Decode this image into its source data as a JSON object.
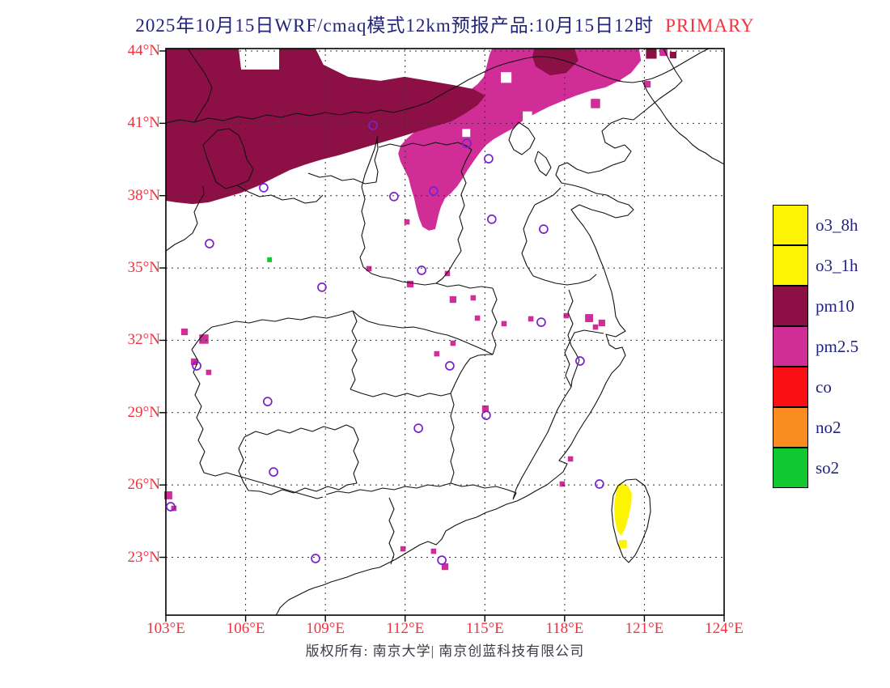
{
  "title": {
    "main": "2025年10月15日WRF/cmaq模式12km预报产品:10月15日12时",
    "highlight": "PRIMARY"
  },
  "footer": {
    "text": "版权所有: 南京大学| 南京创蓝科技有限公司"
  },
  "colors": {
    "title": "#23237e",
    "highlight": "#f2333d",
    "axis_label": "#ef3340",
    "grid": "#333333",
    "boundary": "#111111",
    "frame": "#000000",
    "station": "#7b22cc"
  },
  "axes": {
    "lat_labels": [
      {
        "value": 44,
        "label": "44°N"
      },
      {
        "value": 41,
        "label": "41°N"
      },
      {
        "value": 38,
        "label": "38°N"
      },
      {
        "value": 35,
        "label": "35°N"
      },
      {
        "value": 32,
        "label": "32°N"
      },
      {
        "value": 29,
        "label": "29°N"
      },
      {
        "value": 26,
        "label": "26°N"
      },
      {
        "value": 23,
        "label": "23°N"
      }
    ],
    "lon_labels": [
      {
        "value": 103,
        "label": "103°E"
      },
      {
        "value": 106,
        "label": "106°E"
      },
      {
        "value": 109,
        "label": "109°E"
      },
      {
        "value": 112,
        "label": "112°E"
      },
      {
        "value": 115,
        "label": "115°E"
      },
      {
        "value": 118,
        "label": "118°E"
      },
      {
        "value": 121,
        "label": "121°E"
      },
      {
        "value": 124,
        "label": "124°E"
      }
    ]
  },
  "legend": {
    "items": [
      {
        "label": "o3_8h",
        "color": "#fdf403"
      },
      {
        "label": "o3_1h",
        "color": "#fdf403"
      },
      {
        "label": "pm10",
        "color": "#8c1046"
      },
      {
        "label": "pm2.5",
        "color": "#d02d96"
      },
      {
        "label": "co",
        "color": "#fa0f14"
      },
      {
        "label": "no2",
        "color": "#fb8d20"
      },
      {
        "label": "so2",
        "color": "#12c832"
      }
    ]
  },
  "chart_data": {
    "type": "map",
    "projection": {
      "lon_min": 103,
      "lon_max": 124,
      "lat_min": 20.6,
      "lat_max": 44.1
    },
    "grid_step_deg": 3,
    "lon_ticks": [
      103,
      106,
      109,
      112,
      115,
      118,
      121,
      124
    ],
    "lat_ticks": [
      44,
      41,
      38,
      35,
      32,
      29,
      26,
      23
    ],
    "regions": [
      {
        "pollutant": "pm2.5",
        "color": "#d02d96",
        "polygon": [
          [
            115.27,
            44.1
          ],
          [
            120.8,
            44.1
          ],
          [
            120.87,
            43.6
          ],
          [
            120.5,
            43.09
          ],
          [
            120.04,
            42.76
          ],
          [
            119.53,
            42.49
          ],
          [
            118.98,
            42.35
          ],
          [
            118.43,
            42.15
          ],
          [
            117.91,
            41.92
          ],
          [
            117.39,
            41.68
          ],
          [
            116.91,
            41.41
          ],
          [
            116.48,
            41.15
          ],
          [
            116.09,
            40.81
          ],
          [
            115.69,
            40.57
          ],
          [
            115.33,
            40.34
          ],
          [
            115.02,
            40.07
          ],
          [
            114.78,
            39.74
          ],
          [
            114.56,
            39.4
          ],
          [
            114.35,
            39.06
          ],
          [
            114.17,
            38.73
          ],
          [
            113.96,
            38.39
          ],
          [
            113.74,
            38.12
          ],
          [
            113.5,
            37.89
          ],
          [
            113.35,
            37.55
          ],
          [
            113.26,
            37.22
          ],
          [
            113.19,
            36.88
          ],
          [
            113.13,
            36.61
          ],
          [
            112.89,
            36.55
          ],
          [
            112.65,
            36.71
          ],
          [
            112.53,
            37.05
          ],
          [
            112.43,
            37.45
          ],
          [
            112.34,
            37.89
          ],
          [
            112.22,
            38.33
          ],
          [
            112.13,
            38.73
          ],
          [
            111.98,
            39.06
          ],
          [
            111.83,
            39.4
          ],
          [
            111.74,
            39.74
          ],
          [
            111.83,
            40.07
          ],
          [
            112.04,
            40.34
          ],
          [
            112.28,
            40.57
          ],
          [
            112.59,
            40.81
          ],
          [
            112.89,
            41.08
          ],
          [
            113.19,
            41.35
          ],
          [
            113.5,
            41.58
          ],
          [
            113.8,
            41.82
          ],
          [
            114.11,
            42.08
          ],
          [
            114.41,
            42.35
          ],
          [
            114.72,
            42.62
          ],
          [
            114.96,
            42.93
          ],
          [
            115.08,
            43.43
          ],
          [
            115.17,
            43.83
          ]
        ]
      },
      {
        "pollutant": "pm10",
        "color": "#8c1046",
        "polygon": [
          [
            103.0,
            44.1
          ],
          [
            105.74,
            44.1
          ],
          [
            105.83,
            43.23
          ],
          [
            107.26,
            43.23
          ],
          [
            107.26,
            44.1
          ],
          [
            108.63,
            44.1
          ],
          [
            108.93,
            43.43
          ],
          [
            109.85,
            42.93
          ],
          [
            111.07,
            42.76
          ],
          [
            111.98,
            42.93
          ],
          [
            112.89,
            42.76
          ],
          [
            113.8,
            42.59
          ],
          [
            114.56,
            42.42
          ],
          [
            115.02,
            42.15
          ],
          [
            114.72,
            41.75
          ],
          [
            114.26,
            41.41
          ],
          [
            113.74,
            41.08
          ],
          [
            113.13,
            40.88
          ],
          [
            112.53,
            40.68
          ],
          [
            111.92,
            40.47
          ],
          [
            111.31,
            40.27
          ],
          [
            110.7,
            40.07
          ],
          [
            110.09,
            39.87
          ],
          [
            109.48,
            39.67
          ],
          [
            108.87,
            39.5
          ],
          [
            108.27,
            39.3
          ],
          [
            107.66,
            39.06
          ],
          [
            107.05,
            38.73
          ],
          [
            106.44,
            38.39
          ],
          [
            105.83,
            38.12
          ],
          [
            105.22,
            37.92
          ],
          [
            104.61,
            37.72
          ],
          [
            104.0,
            37.65
          ],
          [
            103.4,
            37.72
          ],
          [
            103.0,
            37.79
          ]
        ]
      },
      {
        "pollutant": "pm10",
        "color": "#8c1046",
        "polygon": [
          [
            116.85,
            44.1
          ],
          [
            118.37,
            44.1
          ],
          [
            118.52,
            43.6
          ],
          [
            118.06,
            43.09
          ],
          [
            117.45,
            42.99
          ],
          [
            116.91,
            43.36
          ],
          [
            116.79,
            43.76
          ]
        ]
      },
      {
        "pollutant": "o3",
        "color": "#fdf403",
        "polygon": [
          [
            120.07,
            26.07
          ],
          [
            120.38,
            25.97
          ],
          [
            120.53,
            25.64
          ],
          [
            120.5,
            25.17
          ],
          [
            120.41,
            24.7
          ],
          [
            120.29,
            24.23
          ],
          [
            120.13,
            23.89
          ],
          [
            119.98,
            24.09
          ],
          [
            119.89,
            24.56
          ],
          [
            119.86,
            25.1
          ],
          [
            119.92,
            25.64
          ],
          [
            119.98,
            25.97
          ]
        ]
      }
    ],
    "spot_patches": [
      {
        "lon": 115.8,
        "lat": 42.9,
        "size_deg": 0.4,
        "color": "#ffffff"
      },
      {
        "lon": 116.6,
        "lat": 41.3,
        "size_deg": 0.35,
        "color": "#ffffff"
      },
      {
        "lon": 114.3,
        "lat": 40.6,
        "size_deg": 0.3,
        "color": "#ffffff"
      },
      {
        "lon": 113.8,
        "lat": 33.69,
        "size_deg": 0.25,
        "color": "#d02d96"
      },
      {
        "lon": 114.72,
        "lat": 32.92,
        "size_deg": 0.2,
        "color": "#d02d96"
      },
      {
        "lon": 115.72,
        "lat": 32.69,
        "size_deg": 0.2,
        "color": "#d02d96"
      },
      {
        "lon": 116.73,
        "lat": 32.89,
        "size_deg": 0.2,
        "color": "#d02d96"
      },
      {
        "lon": 118.06,
        "lat": 33.02,
        "size_deg": 0.2,
        "color": "#d02d96"
      },
      {
        "lon": 118.92,
        "lat": 32.92,
        "size_deg": 0.3,
        "color": "#d02d96"
      },
      {
        "lon": 119.4,
        "lat": 32.72,
        "size_deg": 0.25,
        "color": "#d02d96"
      },
      {
        "lon": 119.16,
        "lat": 32.55,
        "size_deg": 0.2,
        "color": "#d02d96"
      },
      {
        "lon": 113.8,
        "lat": 31.88,
        "size_deg": 0.2,
        "color": "#d02d96"
      },
      {
        "lon": 113.19,
        "lat": 31.44,
        "size_deg": 0.2,
        "color": "#d02d96"
      },
      {
        "lon": 103.7,
        "lat": 32.35,
        "size_deg": 0.25,
        "color": "#d02d96"
      },
      {
        "lon": 104.43,
        "lat": 32.05,
        "size_deg": 0.35,
        "color": "#d02d96"
      },
      {
        "lon": 104.07,
        "lat": 31.11,
        "size_deg": 0.25,
        "color": "#d02d96"
      },
      {
        "lon": 104.61,
        "lat": 30.67,
        "size_deg": 0.2,
        "color": "#d02d96"
      },
      {
        "lon": 115.02,
        "lat": 29.16,
        "size_deg": 0.25,
        "color": "#d02d96"
      },
      {
        "lon": 118.22,
        "lat": 27.08,
        "size_deg": 0.2,
        "color": "#d02d96"
      },
      {
        "lon": 117.91,
        "lat": 26.04,
        "size_deg": 0.2,
        "color": "#d02d96"
      },
      {
        "lon": 103.09,
        "lat": 25.57,
        "size_deg": 0.3,
        "color": "#d02d96"
      },
      {
        "lon": 103.3,
        "lat": 25.03,
        "size_deg": 0.2,
        "color": "#d02d96"
      },
      {
        "lon": 111.92,
        "lat": 23.35,
        "size_deg": 0.2,
        "color": "#d02d96"
      },
      {
        "lon": 113.07,
        "lat": 23.25,
        "size_deg": 0.2,
        "color": "#d02d96"
      },
      {
        "lon": 113.5,
        "lat": 22.61,
        "size_deg": 0.25,
        "color": "#d02d96"
      },
      {
        "lon": 114.56,
        "lat": 33.76,
        "size_deg": 0.2,
        "color": "#d02d96"
      },
      {
        "lon": 113.59,
        "lat": 34.77,
        "size_deg": 0.2,
        "color": "#d02d96"
      },
      {
        "lon": 112.07,
        "lat": 36.91,
        "size_deg": 0.2,
        "color": "#d02d96"
      },
      {
        "lon": 110.64,
        "lat": 34.97,
        "size_deg": 0.2,
        "color": "#d02d96"
      },
      {
        "lon": 112.19,
        "lat": 34.33,
        "size_deg": 0.25,
        "color": "#d02d96"
      },
      {
        "lon": 119.16,
        "lat": 41.82,
        "size_deg": 0.35,
        "color": "#d02d96"
      },
      {
        "lon": 119.95,
        "lat": 42.89,
        "size_deg": 0.3,
        "color": "#d02d96"
      },
      {
        "lon": 121.11,
        "lat": 42.62,
        "size_deg": 0.25,
        "color": "#d02d96"
      },
      {
        "lon": 121.72,
        "lat": 43.96,
        "size_deg": 0.3,
        "color": "#d02d96"
      },
      {
        "lon": 121.26,
        "lat": 43.9,
        "size_deg": 0.4,
        "color": "#8c1046"
      },
      {
        "lon": 122.08,
        "lat": 43.83,
        "size_deg": 0.25,
        "color": "#8c1046"
      },
      {
        "lon": 120.19,
        "lat": 23.55,
        "size_deg": 0.3,
        "color": "#fdf403"
      },
      {
        "lon": 106.9,
        "lat": 35.34,
        "size_deg": 0.18,
        "color": "#12c832"
      }
    ],
    "stations": [
      {
        "lon": 110.79,
        "lat": 40.91
      },
      {
        "lon": 114.32,
        "lat": 40.17
      },
      {
        "lon": 115.14,
        "lat": 39.53
      },
      {
        "lon": 113.07,
        "lat": 38.19
      },
      {
        "lon": 111.58,
        "lat": 37.96
      },
      {
        "lon": 106.68,
        "lat": 38.33
      },
      {
        "lon": 104.64,
        "lat": 36.01
      },
      {
        "lon": 108.87,
        "lat": 34.2
      },
      {
        "lon": 112.62,
        "lat": 34.9
      },
      {
        "lon": 115.26,
        "lat": 37.02
      },
      {
        "lon": 117.21,
        "lat": 36.61
      },
      {
        "lon": 117.12,
        "lat": 32.75
      },
      {
        "lon": 118.58,
        "lat": 31.14
      },
      {
        "lon": 113.68,
        "lat": 30.94
      },
      {
        "lon": 115.05,
        "lat": 28.89
      },
      {
        "lon": 112.5,
        "lat": 28.35
      },
      {
        "lon": 106.83,
        "lat": 29.46
      },
      {
        "lon": 104.16,
        "lat": 30.94
      },
      {
        "lon": 107.05,
        "lat": 26.54
      },
      {
        "lon": 103.18,
        "lat": 25.1
      },
      {
        "lon": 108.63,
        "lat": 22.95
      },
      {
        "lon": 113.38,
        "lat": 22.88
      },
      {
        "lon": 119.31,
        "lat": 26.04
      }
    ]
  }
}
